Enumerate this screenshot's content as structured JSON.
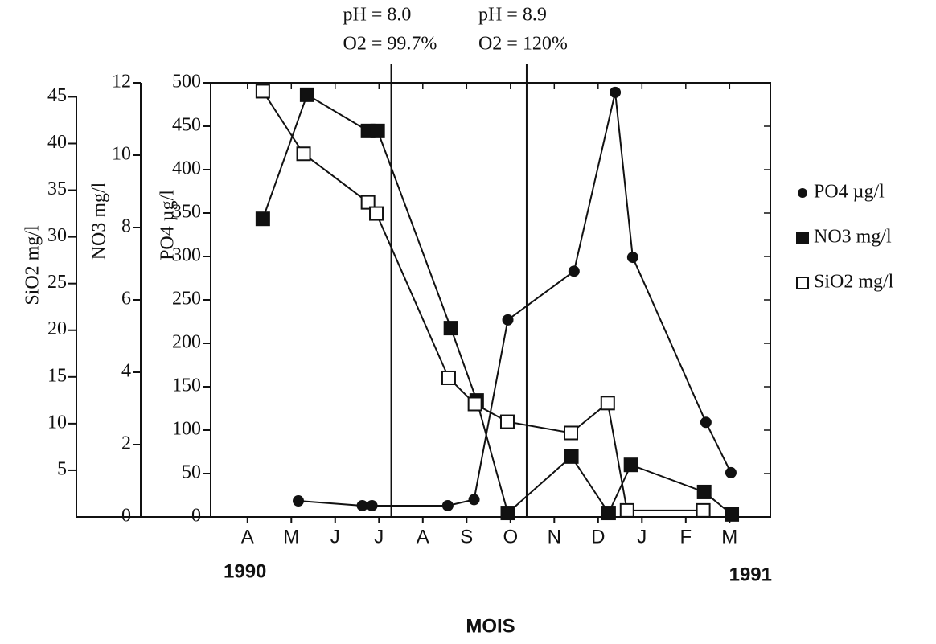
{
  "chart_data": {
    "type": "line",
    "x_label": "MOIS",
    "year_labels": [
      "1990",
      "1991"
    ],
    "xlim": [
      -0.84,
      11.93
    ],
    "xticks": [
      {
        "value": 0,
        "label": "A"
      },
      {
        "value": 1,
        "label": "M"
      },
      {
        "value": 2,
        "label": "J"
      },
      {
        "value": 3,
        "label": "J"
      },
      {
        "value": 4,
        "label": "A"
      },
      {
        "value": 5,
        "label": "S"
      },
      {
        "value": 6,
        "label": "O"
      },
      {
        "value": 7,
        "label": "N"
      },
      {
        "value": 8,
        "label": "D"
      },
      {
        "value": 9,
        "label": "J"
      },
      {
        "value": 10,
        "label": "F"
      },
      {
        "value": 11,
        "label": "M"
      }
    ],
    "y_label": "PO4 µg/l",
    "ylim": [
      0,
      500
    ],
    "yticks": [
      0,
      50,
      100,
      150,
      200,
      250,
      300,
      350,
      400,
      450,
      500
    ],
    "y2_label": "NO3 mg/l",
    "y2lim": [
      0,
      12
    ],
    "y2ticks": [
      0,
      2,
      4,
      6,
      8,
      10,
      12
    ],
    "y3_label": "SiO2 mg/l",
    "y3lim": [
      0,
      46.5
    ],
    "y3ticks": [
      5,
      10,
      15,
      20,
      25,
      30,
      35,
      40,
      45
    ],
    "annotations": [
      {
        "x": 3.28,
        "lines": [
          "pH = 8.0",
          "O2 = 99.7%"
        ]
      },
      {
        "x": 6.37,
        "lines": [
          "pH = 8.9",
          "O2 = 120%"
        ]
      }
    ],
    "series": [
      {
        "name": "PO4 µg/l",
        "color": "#111",
        "marker": "circle",
        "axis": "y",
        "x": [
          1.16,
          2.62,
          2.84,
          4.57,
          5.17,
          5.94,
          7.45,
          8.39,
          8.79,
          10.46,
          11.03
        ],
        "values": [
          18.5,
          13,
          13,
          13,
          20,
          227,
          283,
          489,
          299,
          109,
          51
        ]
      },
      {
        "name": "NO3 mg/l",
        "color": "#111",
        "marker": "filled-square",
        "axis": "y2",
        "x": [
          0.35,
          1.36,
          2.75,
          2.97,
          4.64,
          5.23,
          5.94,
          7.39,
          8.24,
          8.75,
          10.42,
          11.05
        ],
        "values": [
          8.24,
          11.67,
          10.67,
          10.67,
          5.22,
          3.22,
          0.11,
          1.67,
          0.11,
          1.44,
          0.69,
          0.07
        ]
      },
      {
        "name": "SiO2 mg/l",
        "color": "#111",
        "marker": "open-square",
        "axis": "y3",
        "x": [
          0.35,
          1.28,
          2.75,
          2.94,
          4.59,
          5.19,
          5.93,
          7.38,
          8.22,
          8.66,
          10.4
        ],
        "values": [
          45.6,
          38.9,
          33.7,
          32.5,
          14.9,
          12.1,
          10.2,
          9.0,
          12.2,
          0.7,
          0.7
        ]
      }
    ]
  }
}
